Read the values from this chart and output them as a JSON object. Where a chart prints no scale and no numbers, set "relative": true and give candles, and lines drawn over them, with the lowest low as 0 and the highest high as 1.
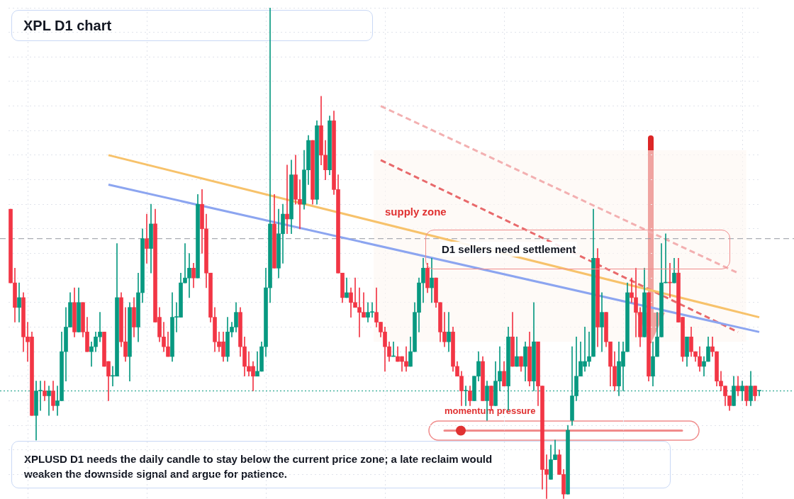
{
  "chart_data": {
    "type": "candlestick",
    "title": "XPL D1 chart",
    "relative": true,
    "grid": true,
    "categories": [
      null,
      null,
      null,
      null,
      null,
      null,
      null,
      null,
      null,
      null,
      null,
      null,
      null,
      null,
      null,
      null,
      null,
      null,
      null,
      null,
      null,
      null,
      null,
      null,
      null,
      null,
      null,
      null,
      null,
      null,
      null,
      null,
      null,
      null,
      null,
      null,
      null,
      null,
      null,
      null,
      null,
      null,
      null,
      null,
      null,
      null,
      null,
      null,
      null,
      null,
      null,
      null,
      null,
      null,
      null,
      null,
      null,
      null,
      null,
      null,
      null,
      null,
      null,
      null,
      null,
      null,
      null,
      null,
      null,
      null,
      null,
      null,
      null,
      null,
      null,
      null,
      null,
      null,
      null,
      null,
      null,
      null,
      null,
      null,
      null,
      null,
      null,
      null,
      null,
      null,
      null,
      null,
      null,
      null,
      null,
      null,
      null,
      null,
      null,
      null,
      null,
      null,
      null,
      null,
      null,
      null,
      null,
      null,
      null,
      null,
      null,
      null,
      null,
      null,
      null,
      null,
      null,
      null,
      null,
      null,
      null,
      null,
      null,
      null,
      null,
      null,
      null,
      null,
      null,
      null,
      null,
      null,
      null,
      null,
      null,
      null,
      null,
      null,
      null,
      null,
      null,
      null,
      null,
      null,
      null,
      null,
      null,
      null,
      null,
      null,
      null,
      null,
      null,
      null,
      null,
      null,
      null,
      null,
      null,
      null,
      null,
      null,
      null,
      null,
      null,
      null,
      null,
      null,
      null,
      null,
      null,
      null,
      null,
      null,
      null,
      null,
      null
    ],
    "ohlc": [
      [
        0.59,
        0.59,
        0.44,
        0.44
      ],
      [
        0.44,
        0.47,
        0.36,
        0.39
      ],
      [
        0.39,
        0.44,
        0.36,
        0.41
      ],
      [
        0.41,
        0.42,
        0.3,
        0.33
      ],
      [
        0.33,
        0.36,
        0.28,
        0.32
      ],
      [
        0.33,
        0.34,
        0.17,
        0.17
      ],
      [
        0.17,
        0.24,
        0.12,
        0.22
      ],
      [
        0.22,
        0.24,
        0.18,
        0.22
      ],
      [
        0.22,
        0.24,
        0.2,
        0.21
      ],
      [
        0.21,
        0.23,
        0.17,
        0.22
      ],
      [
        0.22,
        0.24,
        0.18,
        0.19
      ],
      [
        0.19,
        0.23,
        0.17,
        0.2
      ],
      [
        0.2,
        0.34,
        0.2,
        0.3
      ],
      [
        0.3,
        0.39,
        0.24,
        0.35
      ],
      [
        0.35,
        0.42,
        0.35,
        0.4
      ],
      [
        0.4,
        0.43,
        0.33,
        0.34
      ],
      [
        0.34,
        0.43,
        0.34,
        0.4
      ],
      [
        0.4,
        0.4,
        0.33,
        0.34
      ],
      [
        0.34,
        0.37,
        0.3,
        0.3
      ],
      [
        0.3,
        0.32,
        0.27,
        0.31
      ],
      [
        0.31,
        0.34,
        0.3,
        0.33
      ],
      [
        0.33,
        0.38,
        0.32,
        0.34
      ],
      [
        0.34,
        0.34,
        0.27,
        0.27
      ],
      [
        0.28,
        0.28,
        0.2,
        0.25
      ],
      [
        0.25,
        0.27,
        0.23,
        0.25
      ],
      [
        0.25,
        0.52,
        0.25,
        0.41
      ],
      [
        0.41,
        0.42,
        0.31,
        0.32
      ],
      [
        0.32,
        0.39,
        0.28,
        0.29
      ],
      [
        0.29,
        0.4,
        0.24,
        0.39
      ],
      [
        0.39,
        0.41,
        0.33,
        0.35
      ],
      [
        0.35,
        0.46,
        0.32,
        0.42
      ],
      [
        0.42,
        0.55,
        0.4,
        0.53
      ],
      [
        0.53,
        0.58,
        0.48,
        0.51
      ],
      [
        0.51,
        0.6,
        0.46,
        0.56
      ],
      [
        0.56,
        0.59,
        0.36,
        0.36
      ],
      [
        0.37,
        0.39,
        0.32,
        0.33
      ],
      [
        0.33,
        0.36,
        0.3,
        0.31
      ],
      [
        0.31,
        0.34,
        0.29,
        0.29
      ],
      [
        0.29,
        0.42,
        0.28,
        0.37
      ],
      [
        0.37,
        0.4,
        0.34,
        0.37
      ],
      [
        0.37,
        0.46,
        0.37,
        0.44
      ],
      [
        0.44,
        0.52,
        0.44,
        0.45
      ],
      [
        0.45,
        0.5,
        0.41,
        0.47
      ],
      [
        0.47,
        0.48,
        0.43,
        0.45
      ],
      [
        0.45,
        0.62,
        0.45,
        0.6
      ],
      [
        0.6,
        0.63,
        0.5,
        0.55
      ],
      [
        0.55,
        0.58,
        0.43,
        0.46
      ],
      [
        0.46,
        0.46,
        0.36,
        0.37
      ],
      [
        0.37,
        0.39,
        0.3,
        0.32
      ],
      [
        0.32,
        0.34,
        0.3,
        0.31
      ],
      [
        0.32,
        0.34,
        0.28,
        0.29
      ],
      [
        0.29,
        0.37,
        0.28,
        0.34
      ],
      [
        0.34,
        0.36,
        0.33,
        0.35
      ],
      [
        0.35,
        0.4,
        0.34,
        0.38
      ],
      [
        0.38,
        0.39,
        0.29,
        0.31
      ],
      [
        0.31,
        0.33,
        0.25,
        0.27
      ],
      [
        0.27,
        0.3,
        0.25,
        0.26
      ],
      [
        0.27,
        0.28,
        0.22,
        0.25
      ],
      [
        0.25,
        0.3,
        0.25,
        0.26
      ],
      [
        0.26,
        0.32,
        0.26,
        0.31
      ],
      [
        0.31,
        0.47,
        0.29,
        0.43
      ],
      [
        0.43,
        1,
        0.4,
        0.56
      ],
      [
        0.56,
        0.62,
        0.47,
        0.47
      ],
      [
        0.47,
        0.59,
        0.45,
        0.54
      ],
      [
        0.54,
        0.6,
        0.48,
        0.58
      ],
      [
        0.58,
        0.68,
        0.54,
        0.57
      ],
      [
        0.57,
        0.69,
        0.54,
        0.66
      ],
      [
        0.66,
        0.7,
        0.6,
        0.61
      ],
      [
        0.61,
        0.65,
        0.55,
        0.6
      ],
      [
        0.6,
        0.71,
        0.59,
        0.67
      ],
      [
        0.67,
        0.74,
        0.64,
        0.73
      ],
      [
        0.73,
        0.73,
        0.6,
        0.61
      ],
      [
        0.61,
        0.77,
        0.6,
        0.76
      ],
      [
        0.76,
        0.82,
        0.68,
        0.7
      ],
      [
        0.7,
        0.73,
        0.65,
        0.67
      ],
      [
        0.67,
        0.78,
        0.66,
        0.77
      ],
      [
        0.77,
        0.79,
        0.62,
        0.63
      ],
      [
        0.63,
        0.66,
        0.46,
        0.46
      ],
      [
        0.46,
        0.46,
        0.4,
        0.41
      ],
      [
        0.41,
        0.45,
        0.41,
        0.42
      ],
      [
        0.42,
        0.43,
        0.37,
        0.4
      ],
      [
        0.4,
        0.45,
        0.39,
        0.39
      ],
      [
        0.39,
        0.43,
        0.33,
        0.38
      ],
      [
        0.38,
        0.42,
        0.37,
        0.37
      ],
      [
        0.37,
        0.4,
        0.36,
        0.38
      ],
      [
        0.38,
        0.4,
        0.37,
        0.38
      ],
      [
        0.38,
        0.43,
        0.35,
        0.36
      ],
      [
        0.36,
        0.36,
        0.33,
        0.34
      ],
      [
        0.34,
        0.35,
        0.26,
        0.31
      ],
      [
        0.31,
        0.32,
        0.28,
        0.29
      ],
      [
        0.29,
        0.32,
        0.29,
        0.29
      ],
      [
        0.29,
        0.31,
        0.28,
        0.28
      ],
      [
        0.29,
        0.29,
        0.26,
        0.28
      ],
      [
        0.28,
        0.31,
        0.26,
        0.27
      ],
      [
        0.27,
        0.33,
        0.27,
        0.3
      ],
      [
        0.3,
        0.4,
        0.3,
        0.38
      ],
      [
        0.38,
        0.45,
        0.34,
        0.44
      ],
      [
        0.44,
        0.49,
        0.4,
        0.47
      ],
      [
        0.47,
        0.48,
        0.42,
        0.43
      ],
      [
        0.43,
        0.49,
        0.4,
        0.45
      ],
      [
        0.45,
        0.45,
        0.39,
        0.4
      ],
      [
        0.4,
        0.4,
        0.32,
        0.34
      ],
      [
        0.34,
        0.38,
        0.31,
        0.32
      ],
      [
        0.32,
        0.38,
        0.3,
        0.34
      ],
      [
        0.34,
        0.35,
        0.26,
        0.27
      ],
      [
        0.27,
        0.28,
        0.25,
        0.25
      ],
      [
        0.25,
        0.26,
        0.19,
        0.22
      ],
      [
        0.22,
        0.23,
        0.19,
        0.22
      ],
      [
        0.22,
        0.23,
        0.19,
        0.2
      ],
      [
        0.2,
        0.25,
        0.2,
        0.25
      ],
      [
        0.25,
        0.3,
        0.24,
        0.28
      ],
      [
        0.28,
        0.29,
        0.2,
        0.2
      ],
      [
        0.2,
        0.24,
        0.16,
        0.23
      ],
      [
        0.23,
        0.23,
        0.18,
        0.19
      ],
      [
        0.19,
        0.28,
        0.19,
        0.24
      ],
      [
        0.24,
        0.31,
        0.22,
        0.26
      ],
      [
        0.26,
        0.28,
        0.23,
        0.23
      ],
      [
        0.23,
        0.35,
        0.18,
        0.33
      ],
      [
        0.33,
        0.38,
        0.27,
        0.27
      ],
      [
        0.27,
        0.33,
        0.27,
        0.29
      ],
      [
        0.29,
        0.29,
        0.26,
        0.27
      ],
      [
        0.27,
        0.32,
        0.24,
        0.31
      ],
      [
        0.31,
        0.34,
        0.23,
        0.24
      ],
      [
        0.24,
        0.4,
        0.22,
        0.32
      ],
      [
        0.32,
        0.32,
        0.19,
        0.23
      ],
      [
        0.23,
        0.23,
        0.02,
        0.06
      ],
      [
        0.06,
        0.09,
        0,
        0.05
      ],
      [
        0.04,
        0.11,
        0.04,
        0.08
      ],
      [
        0.08,
        0.12,
        0.08,
        0.09
      ],
      [
        0.09,
        0.1,
        0.05,
        0.05
      ],
      [
        0.05,
        0.06,
        0,
        0.01
      ],
      [
        0.01,
        0.15,
        0.01,
        0.14
      ],
      [
        0.16,
        0.31,
        0.15,
        0.21
      ],
      [
        0.21,
        0.33,
        0.2,
        0.25
      ],
      [
        0.25,
        0.32,
        0.25,
        0.28
      ],
      [
        0.27,
        0.35,
        0.26,
        0.28
      ],
      [
        0.28,
        0.34,
        0.27,
        0.29
      ],
      [
        0.29,
        0.59,
        0.29,
        0.49
      ],
      [
        0.49,
        0.51,
        0.31,
        0.35
      ],
      [
        0.35,
        0.42,
        0.3,
        0.38
      ],
      [
        0.38,
        0.38,
        0.31,
        0.32
      ],
      [
        0.32,
        0.32,
        0.23,
        0.27
      ],
      [
        0.27,
        0.3,
        0.22,
        0.23
      ],
      [
        0.23,
        0.32,
        0.21,
        0.28
      ],
      [
        0.27,
        0.32,
        0.22,
        0.3
      ],
      [
        0.3,
        0.44,
        0.3,
        0.42
      ],
      [
        0.42,
        0.45,
        0.4,
        0.41
      ],
      [
        0.41,
        0.47,
        0.33,
        0.38
      ],
      [
        0.38,
        0.39,
        0.31,
        0.33
      ],
      [
        0.33,
        0.47,
        0.33,
        0.42
      ],
      [
        0.42,
        0.42,
        0.24,
        0.25
      ],
      [
        0.25,
        0.32,
        0.23,
        0.29
      ],
      [
        0.29,
        0.38,
        0.29,
        0.33
      ],
      [
        0.33,
        0.52,
        0.33,
        0.44
      ],
      [
        0.44,
        0.54,
        0.44,
        0.44
      ],
      [
        0.44,
        0.48,
        0.41,
        0.44
      ],
      [
        0.44,
        0.49,
        0.44,
        0.46
      ],
      [
        0.46,
        0.49,
        0.36,
        0.36
      ],
      [
        0.37,
        0.37,
        0.28,
        0.29
      ],
      [
        0.29,
        0.33,
        0.27,
        0.33
      ],
      [
        0.33,
        0.35,
        0.29,
        0.3
      ],
      [
        0.3,
        0.3,
        0.28,
        0.29
      ],
      [
        0.29,
        0.31,
        0.26,
        0.27
      ],
      [
        0.27,
        0.29,
        0.25,
        0.28
      ],
      [
        0.28,
        0.33,
        0.28,
        0.31
      ],
      [
        0.31,
        0.33,
        0.29,
        0.3
      ],
      [
        0.3,
        0.3,
        0.23,
        0.24
      ],
      [
        0.24,
        0.26,
        0.22,
        0.23
      ],
      [
        0.23,
        0.23,
        0.19,
        0.21
      ],
      [
        0.21,
        0.21,
        0.18,
        0.19
      ],
      [
        0.19,
        0.25,
        0.19,
        0.23
      ],
      [
        0.23,
        0.25,
        0.21,
        0.22
      ],
      [
        0.22,
        0.24,
        0.2,
        0.23
      ],
      [
        0.23,
        0.23,
        0.19,
        0.2
      ],
      [
        0.2,
        0.26,
        0.19,
        0.23
      ],
      [
        0.23,
        0.23,
        0.2,
        0.21
      ],
      [
        0.22,
        0.22,
        0.21,
        0.22
      ]
    ],
    "colors": [
      "#f23645",
      "#f23645",
      "#089981",
      "#f23645",
      "#f23645",
      "#f23645",
      "#089981",
      "#089981",
      "#f23645",
      "#089981",
      "#f23645",
      "#089981",
      "#089981",
      "#089981",
      "#089981",
      "#f23645",
      "#089981",
      "#f23645",
      "#f23645",
      "#089981",
      "#089981",
      "#089981",
      "#f23645",
      "#f23645",
      "#089981",
      "#089981",
      "#f23645",
      "#f23645",
      "#089981",
      "#f23645",
      "#089981",
      "#089981",
      "#f23645",
      "#089981",
      "#f23645",
      "#f23645",
      "#f23645",
      "#f23645",
      "#089981",
      "#089981",
      "#089981",
      "#089981",
      "#089981",
      "#f23645",
      "#089981",
      "#f23645",
      "#f23645",
      "#f23645",
      "#f23645",
      "#f23645",
      "#f23645",
      "#089981",
      "#089981",
      "#089981",
      "#f23645",
      "#f23645",
      "#f23645",
      "#f23645",
      "#089981",
      "#089981",
      "#089981",
      "#089981",
      "#f23645",
      "#089981",
      "#089981",
      "#f23645",
      "#089981",
      "#f23645",
      "#f23645",
      "#089981",
      "#089981",
      "#f23645",
      "#089981",
      "#f23645",
      "#f23645",
      "#089981",
      "#f23645",
      "#f23645",
      "#f23645",
      "#089981",
      "#f23645",
      "#f23645",
      "#f23645",
      "#f23645",
      "#089981",
      "#089981",
      "#f23645",
      "#f23645",
      "#f23645",
      "#f23645",
      "#089981",
      "#f23645",
      "#f23645",
      "#f23645",
      "#089981",
      "#089981",
      "#089981",
      "#089981",
      "#f23645",
      "#089981",
      "#f23645",
      "#f23645",
      "#f23645",
      "#089981",
      "#f23645",
      "#f23645",
      "#f23645",
      "#089981",
      "#f23645",
      "#089981",
      "#089981",
      "#f23645",
      "#089981",
      "#f23645",
      "#089981",
      "#089981",
      "#f23645",
      "#089981",
      "#f23645",
      "#089981",
      "#f23645",
      "#089981",
      "#f23645",
      "#089981",
      "#f23645",
      "#f23645",
      "#f23645",
      "#089981",
      "#089981",
      "#f23645",
      "#f23645",
      "#089981",
      "#089981",
      "#089981",
      "#089981",
      "#089981",
      "#089981",
      "#089981",
      "#f23645",
      "#089981",
      "#f23645",
      "#f23645",
      "#f23645",
      "#089981",
      "#089981",
      "#089981",
      "#f23645",
      "#f23645",
      "#f23645",
      "#089981",
      "#f23645",
      "#089981",
      "#089981",
      "#089981",
      "#089981",
      "#f23645",
      "#089981",
      "#f23645",
      "#f23645",
      "#089981",
      "#f23645",
      "#f23645",
      "#f23645",
      "#089981",
      "#089981",
      "#f23645",
      "#f23645",
      "#f23645",
      "#f23645",
      "#f23645",
      "#089981",
      "#f23645",
      "#089981",
      "#f23645",
      "#089981",
      "#f23645",
      "#089981"
    ],
    "series": [
      {
        "type": "line",
        "color": "#f7c26b",
        "line_style": "solid",
        "values": [
          null,
          null,
          null,
          null,
          null,
          null,
          null,
          null,
          null,
          null,
          null,
          null,
          null,
          null,
          null,
          null,
          null,
          null,
          null,
          null,
          null,
          null,
          null,
          0.7,
          null,
          null,
          null,
          null,
          null,
          null,
          null,
          null,
          null,
          null,
          null,
          null,
          null,
          null,
          null,
          null,
          null,
          null,
          null,
          null,
          null,
          null,
          null,
          null,
          null,
          null,
          null,
          null,
          null,
          null,
          null,
          null,
          null,
          null,
          null,
          null,
          null,
          null,
          null,
          null,
          null,
          null,
          null,
          null,
          null,
          null,
          null,
          null,
          null,
          null,
          null,
          null,
          null,
          null,
          null,
          null,
          null,
          null,
          null,
          null,
          null,
          null,
          null,
          null,
          null,
          null,
          null,
          null,
          null,
          null,
          null,
          null,
          null,
          null,
          null,
          null,
          null,
          null,
          null,
          null,
          null,
          null,
          null,
          null,
          null,
          null,
          null,
          null,
          null,
          null,
          null,
          null,
          null,
          null,
          null,
          null,
          null,
          null,
          null,
          null,
          null,
          null,
          null,
          null,
          null,
          null,
          null,
          null,
          null,
          null,
          null,
          null,
          null,
          null,
          null,
          null,
          null,
          null,
          null,
          null,
          null,
          null,
          null,
          null,
          null,
          null,
          null,
          null,
          null,
          null,
          null,
          null,
          null,
          null,
          null,
          null,
          null,
          null,
          null,
          null,
          null,
          null,
          null,
          null,
          null,
          null,
          null,
          null,
          null,
          null,
          null,
          null,
          0.37
        ]
      },
      {
        "type": "line",
        "color": "#8ca5f0",
        "line_style": "solid",
        "values": [
          null,
          null,
          null,
          null,
          null,
          null,
          null,
          null,
          null,
          null,
          null,
          null,
          null,
          null,
          null,
          null,
          null,
          null,
          null,
          null,
          null,
          null,
          null,
          0.64,
          null,
          null,
          null,
          null,
          null,
          null,
          null,
          null,
          null,
          null,
          null,
          null,
          null,
          null,
          null,
          null,
          null,
          null,
          null,
          null,
          null,
          null,
          null,
          null,
          null,
          null,
          null,
          null,
          null,
          null,
          null,
          null,
          null,
          null,
          null,
          null,
          null,
          null,
          null,
          null,
          null,
          null,
          null,
          null,
          null,
          null,
          null,
          null,
          null,
          null,
          null,
          null,
          null,
          null,
          null,
          null,
          null,
          null,
          null,
          null,
          null,
          null,
          null,
          null,
          null,
          null,
          null,
          null,
          null,
          null,
          null,
          null,
          null,
          null,
          null,
          null,
          null,
          null,
          null,
          null,
          null,
          null,
          null,
          null,
          null,
          null,
          null,
          null,
          null,
          null,
          null,
          null,
          null,
          null,
          null,
          null,
          null,
          null,
          null,
          null,
          null,
          null,
          null,
          null,
          null,
          null,
          null,
          null,
          null,
          null,
          null,
          null,
          null,
          null,
          null,
          null,
          null,
          null,
          null,
          null,
          null,
          null,
          null,
          null,
          null,
          null,
          null,
          null,
          null,
          null,
          null,
          null,
          null,
          null,
          null,
          null,
          null,
          null,
          null,
          null,
          null,
          null,
          null,
          null,
          null,
          null,
          null,
          null,
          null,
          null,
          null,
          null,
          0.34
        ]
      },
      {
        "type": "line",
        "color": "#e8696b",
        "line_style": "dashed",
        "values": [
          null,
          null,
          null,
          null,
          null,
          null,
          null,
          null,
          null,
          null,
          null,
          null,
          null,
          null,
          null,
          null,
          null,
          null,
          null,
          null,
          null,
          null,
          null,
          null,
          null,
          null,
          null,
          null,
          null,
          null,
          null,
          null,
          null,
          null,
          null,
          null,
          null,
          null,
          null,
          null,
          null,
          null,
          null,
          null,
          null,
          null,
          null,
          null,
          null,
          null,
          null,
          null,
          null,
          null,
          null,
          null,
          null,
          null,
          null,
          null,
          null,
          null,
          null,
          null,
          null,
          null,
          null,
          null,
          null,
          null,
          null,
          null,
          null,
          null,
          null,
          null,
          null,
          null,
          null,
          null,
          null,
          null,
          null,
          null,
          null,
          null,
          null,
          0.69,
          null,
          null,
          null,
          null,
          null,
          null,
          null,
          null,
          null,
          null,
          null,
          null,
          null,
          null,
          null,
          null,
          null,
          null,
          null,
          null,
          null,
          null,
          null,
          null,
          null,
          null,
          null,
          null,
          null,
          null,
          null,
          null,
          null,
          null,
          null,
          null,
          null,
          null,
          null,
          null,
          null,
          null,
          null,
          null,
          null,
          null,
          null,
          null,
          null,
          null,
          null,
          null,
          null,
          null,
          null,
          null,
          null,
          null,
          null,
          null,
          null,
          null,
          null,
          null,
          null,
          null,
          null,
          null,
          null,
          null,
          null,
          null,
          null,
          null,
          null,
          null,
          null,
          null,
          null,
          null,
          null,
          null,
          null,
          0.34,
          null,
          null,
          null,
          null,
          null
        ]
      },
      {
        "type": "line",
        "color": "#f3b0b1",
        "line_style": "dashed",
        "values": [
          null,
          null,
          null,
          null,
          null,
          null,
          null,
          null,
          null,
          null,
          null,
          null,
          null,
          null,
          null,
          null,
          null,
          null,
          null,
          null,
          null,
          null,
          null,
          null,
          null,
          null,
          null,
          null,
          null,
          null,
          null,
          null,
          null,
          null,
          null,
          null,
          null,
          null,
          null,
          null,
          null,
          null,
          null,
          null,
          null,
          null,
          null,
          null,
          null,
          null,
          null,
          null,
          null,
          null,
          null,
          null,
          null,
          null,
          null,
          null,
          null,
          null,
          null,
          null,
          null,
          null,
          null,
          null,
          null,
          null,
          null,
          null,
          null,
          null,
          null,
          null,
          null,
          null,
          null,
          null,
          null,
          null,
          null,
          null,
          null,
          null,
          null,
          0.8,
          null,
          null,
          null,
          null,
          null,
          null,
          null,
          null,
          null,
          null,
          null,
          null,
          null,
          null,
          null,
          null,
          null,
          null,
          null,
          null,
          null,
          null,
          null,
          null,
          null,
          null,
          null,
          null,
          null,
          null,
          null,
          null,
          null,
          null,
          null,
          null,
          null,
          null,
          null,
          null,
          null,
          null,
          null,
          null,
          null,
          null,
          null,
          null,
          null,
          null,
          null,
          null,
          null,
          null,
          null,
          null,
          null,
          null,
          null,
          null,
          null,
          null,
          null,
          null,
          null,
          null,
          null,
          null,
          null,
          null,
          null,
          null,
          null,
          null,
          null,
          null,
          null,
          null,
          null,
          null,
          null,
          null,
          null,
          0.46,
          null,
          null,
          null,
          null,
          null
        ]
      }
    ],
    "ref_lines": [
      {
        "axis": "y",
        "value": 0.22,
        "color": "#089981",
        "line_style": "dotted"
      },
      {
        "axis": "y",
        "value": 0.53,
        "color": "#9598a1",
        "line_style": "dashed"
      }
    ],
    "bands": [
      {
        "axis": "y",
        "from": 0.32,
        "to": 0.71,
        "label": "supply zone",
        "color": "#fdf6f1"
      }
    ],
    "annotations": [
      "D1 sellers need settlement",
      "momentum pressure",
      "XPLUSD D1 needs the daily candle to stay below the current price zone; a late reclaim would weaken the downside signal and argue for patience."
    ]
  }
}
